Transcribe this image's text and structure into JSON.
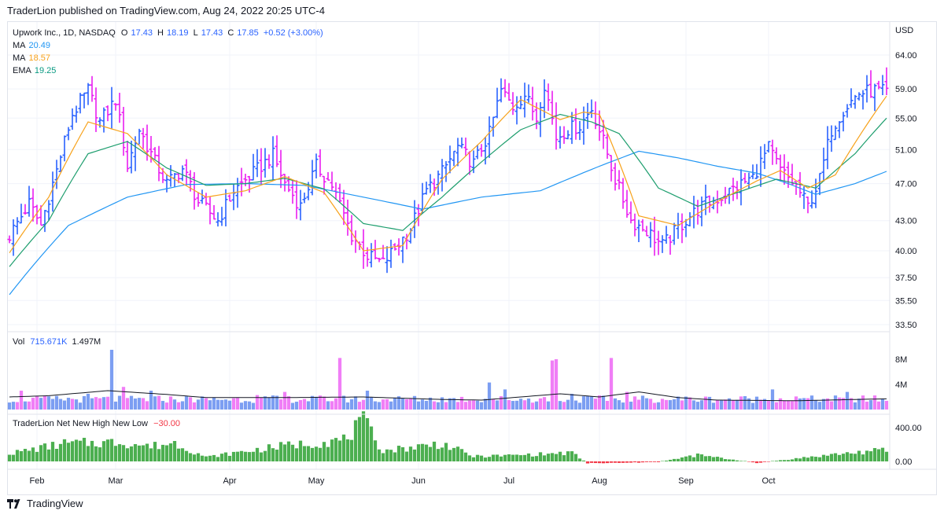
{
  "header": {
    "published": "TraderLion published on TradingView.com, Aug 24, 2022 20:25 UTC-4"
  },
  "footer": {
    "brand": "TradingView"
  },
  "legend": {
    "symbol": "Upwork Inc., 1D, NASDAQ",
    "o_label": "O",
    "o": "17.43",
    "h_label": "H",
    "h": "18.19",
    "l_label": "L",
    "l": "17.43",
    "c_label": "C",
    "c": "17.85",
    "change": "+0.52 (+3.00%)",
    "ma1_label": "MA",
    "ma1": "20.49",
    "ma2_label": "MA",
    "ma2": "18.57",
    "ema_label": "EMA",
    "ema": "19.25",
    "vol_label": "Vol",
    "vol1": "715.671K",
    "vol2": "1.497M",
    "nnh_label": "TraderLion Net New High New Low",
    "nnh": "−30.00"
  },
  "colors": {
    "up_bar": "#2962ff",
    "down_bar": "#e91ef0",
    "vol_up": "#7c9ef2",
    "vol_down": "#f07ef6",
    "ma_long": "#2196f3",
    "ma_short": "#f7a21b",
    "ema": "#1e9e6e",
    "nnh_pos": "#4caf50",
    "nnh_neg": "#f23645",
    "grid": "#f0f3fa"
  },
  "chart_data": {
    "type": "ohlc-with-volume-and-indicator",
    "currency_label": "USD",
    "price_ticks": [
      "64.00",
      "59.00",
      "55.00",
      "51.00",
      "47.00",
      "43.00",
      "40.00",
      "37.50",
      "35.50",
      "33.50"
    ],
    "volume_ticks": [
      "8M",
      "4M"
    ],
    "indicator_ticks": [
      "400.00",
      "0.00"
    ],
    "month_labels": [
      "Feb",
      "Mar",
      "Apr",
      "May",
      "Jun",
      "Jul",
      "Aug",
      "Sep",
      "Oct"
    ],
    "price_path": [
      [
        0,
        41.5
      ],
      [
        5,
        44.8
      ],
      [
        8,
        42.5
      ],
      [
        12,
        48.5
      ],
      [
        16,
        55.5
      ],
      [
        20,
        58.8
      ],
      [
        23,
        54.5
      ],
      [
        27,
        57.5
      ],
      [
        30,
        49.0
      ],
      [
        33,
        53.5
      ],
      [
        37,
        49.5
      ],
      [
        40,
        47.0
      ],
      [
        44,
        48.7
      ],
      [
        48,
        45.0
      ],
      [
        53,
        43.0
      ],
      [
        57,
        46.2
      ],
      [
        62,
        48.2
      ],
      [
        67,
        50.3
      ],
      [
        70,
        47.0
      ],
      [
        74,
        44.5
      ],
      [
        78,
        49.0
      ],
      [
        82,
        46.8
      ],
      [
        87,
        41.5
      ],
      [
        91,
        39.5
      ],
      [
        95,
        38.8
      ],
      [
        99,
        40.7
      ],
      [
        102,
        42.2
      ],
      [
        106,
        46.2
      ],
      [
        110,
        48.3
      ],
      [
        114,
        51.3
      ],
      [
        118,
        49.3
      ],
      [
        122,
        53.0
      ],
      [
        125,
        58.8
      ],
      [
        128,
        56.5
      ],
      [
        131,
        58.2
      ],
      [
        134,
        55.0
      ],
      [
        136,
        59.8
      ],
      [
        139,
        52.5
      ],
      [
        142,
        53.6
      ],
      [
        145,
        54.0
      ],
      [
        148,
        56.3
      ],
      [
        151,
        52.0
      ],
      [
        154,
        47.5
      ],
      [
        158,
        43.0
      ],
      [
        162,
        42.0
      ],
      [
        166,
        40.5
      ],
      [
        169,
        41.8
      ],
      [
        173,
        43.5
      ],
      [
        177,
        44.8
      ],
      [
        181,
        45.5
      ],
      [
        185,
        46.7
      ],
      [
        189,
        47.7
      ],
      [
        193,
        51.2
      ],
      [
        196,
        48.5
      ],
      [
        200,
        46.7
      ],
      [
        203,
        44.5
      ],
      [
        206,
        47.5
      ],
      [
        209,
        53.5
      ],
      [
        212,
        56.2
      ],
      [
        216,
        58.4
      ],
      [
        220,
        58.8
      ],
      [
        223,
        58.5
      ]
    ],
    "moving_averages": {
      "ma_long_50": [
        [
          0,
          36.0
        ],
        [
          15,
          42.5
        ],
        [
          30,
          45.5
        ],
        [
          45,
          46.9
        ],
        [
          60,
          47.0
        ],
        [
          75,
          46.8
        ],
        [
          90,
          45.5
        ],
        [
          105,
          44.2
        ],
        [
          120,
          45.5
        ],
        [
          135,
          46.2
        ],
        [
          150,
          49.0
        ],
        [
          160,
          50.8
        ],
        [
          170,
          50.0
        ],
        [
          180,
          49.0
        ],
        [
          190,
          48.2
        ],
        [
          198,
          47.0
        ],
        [
          205,
          45.8
        ],
        [
          215,
          47.0
        ],
        [
          223,
          48.4
        ]
      ],
      "ma_short_10": [
        [
          0,
          39.8
        ],
        [
          10,
          45.5
        ],
        [
          20,
          54.5
        ],
        [
          30,
          53.0
        ],
        [
          40,
          48.0
        ],
        [
          50,
          45.5
        ],
        [
          60,
          46.2
        ],
        [
          70,
          47.8
        ],
        [
          80,
          46.0
        ],
        [
          90,
          40.0
        ],
        [
          100,
          40.5
        ],
        [
          110,
          47.5
        ],
        [
          120,
          52.0
        ],
        [
          130,
          57.5
        ],
        [
          140,
          54.8
        ],
        [
          146,
          55.8
        ],
        [
          150,
          55.5
        ],
        [
          160,
          43.5
        ],
        [
          170,
          42.5
        ],
        [
          180,
          45.0
        ],
        [
          190,
          47.3
        ],
        [
          196,
          48.5
        ],
        [
          203,
          46.5
        ],
        [
          210,
          48.0
        ],
        [
          223,
          58.0
        ]
      ],
      "ema_21": [
        [
          0,
          38.5
        ],
        [
          10,
          43.0
        ],
        [
          20,
          50.5
        ],
        [
          30,
          52.0
        ],
        [
          40,
          48.8
        ],
        [
          50,
          46.8
        ],
        [
          60,
          47.0
        ],
        [
          70,
          47.6
        ],
        [
          80,
          46.4
        ],
        [
          90,
          42.7
        ],
        [
          100,
          42.0
        ],
        [
          110,
          45.5
        ],
        [
          120,
          49.5
        ],
        [
          130,
          53.5
        ],
        [
          140,
          55.5
        ],
        [
          148,
          54.5
        ],
        [
          155,
          53.0
        ],
        [
          165,
          46.5
        ],
        [
          175,
          44.5
        ],
        [
          185,
          46.0
        ],
        [
          195,
          47.5
        ],
        [
          205,
          46.5
        ],
        [
          215,
          50.5
        ],
        [
          223,
          55.0
        ]
      ]
    },
    "volume_millions": {
      "peak_days": [
        [
          3,
          3.0
        ],
        [
          20,
          2.5
        ],
        [
          26,
          9.5
        ],
        [
          29,
          3.6
        ],
        [
          36,
          3.0
        ],
        [
          50,
          1.8
        ],
        [
          63,
          2.3
        ],
        [
          70,
          2.8
        ],
        [
          84,
          8.2
        ],
        [
          91,
          3.0
        ],
        [
          122,
          4.3
        ],
        [
          126,
          3.2
        ],
        [
          138,
          7.8
        ],
        [
          139,
          8.0
        ],
        [
          143,
          2.5
        ],
        [
          153,
          8.2
        ],
        [
          157,
          2.8
        ],
        [
          194,
          3.2
        ],
        [
          213,
          2.8
        ]
      ],
      "baseline": 1.5,
      "average_path": [
        [
          0,
          2.0
        ],
        [
          10,
          2.2
        ],
        [
          25,
          3.0
        ],
        [
          40,
          2.4
        ],
        [
          50,
          1.9
        ],
        [
          70,
          1.9
        ],
        [
          90,
          2.0
        ],
        [
          110,
          1.6
        ],
        [
          120,
          1.5
        ],
        [
          140,
          2.5
        ],
        [
          150,
          2.0
        ],
        [
          160,
          2.8
        ],
        [
          170,
          1.9
        ],
        [
          180,
          1.5
        ],
        [
          200,
          1.4
        ],
        [
          223,
          1.7
        ]
      ]
    },
    "net_new_high_low": {
      "peaks": [
        [
          1,
          120
        ],
        [
          14,
          250
        ],
        [
          28,
          270
        ],
        [
          36,
          210
        ],
        [
          42,
          260
        ],
        [
          50,
          60
        ],
        [
          70,
          220
        ],
        [
          85,
          300
        ],
        [
          90,
          550
        ],
        [
          95,
          150
        ],
        [
          110,
          250
        ],
        [
          118,
          70
        ],
        [
          125,
          80
        ],
        [
          135,
          100
        ],
        [
          143,
          120
        ],
        [
          147,
          -25
        ],
        [
          165,
          -10
        ],
        [
          175,
          90
        ],
        [
          190,
          -20
        ],
        [
          210,
          100
        ],
        [
          223,
          160
        ]
      ]
    }
  }
}
